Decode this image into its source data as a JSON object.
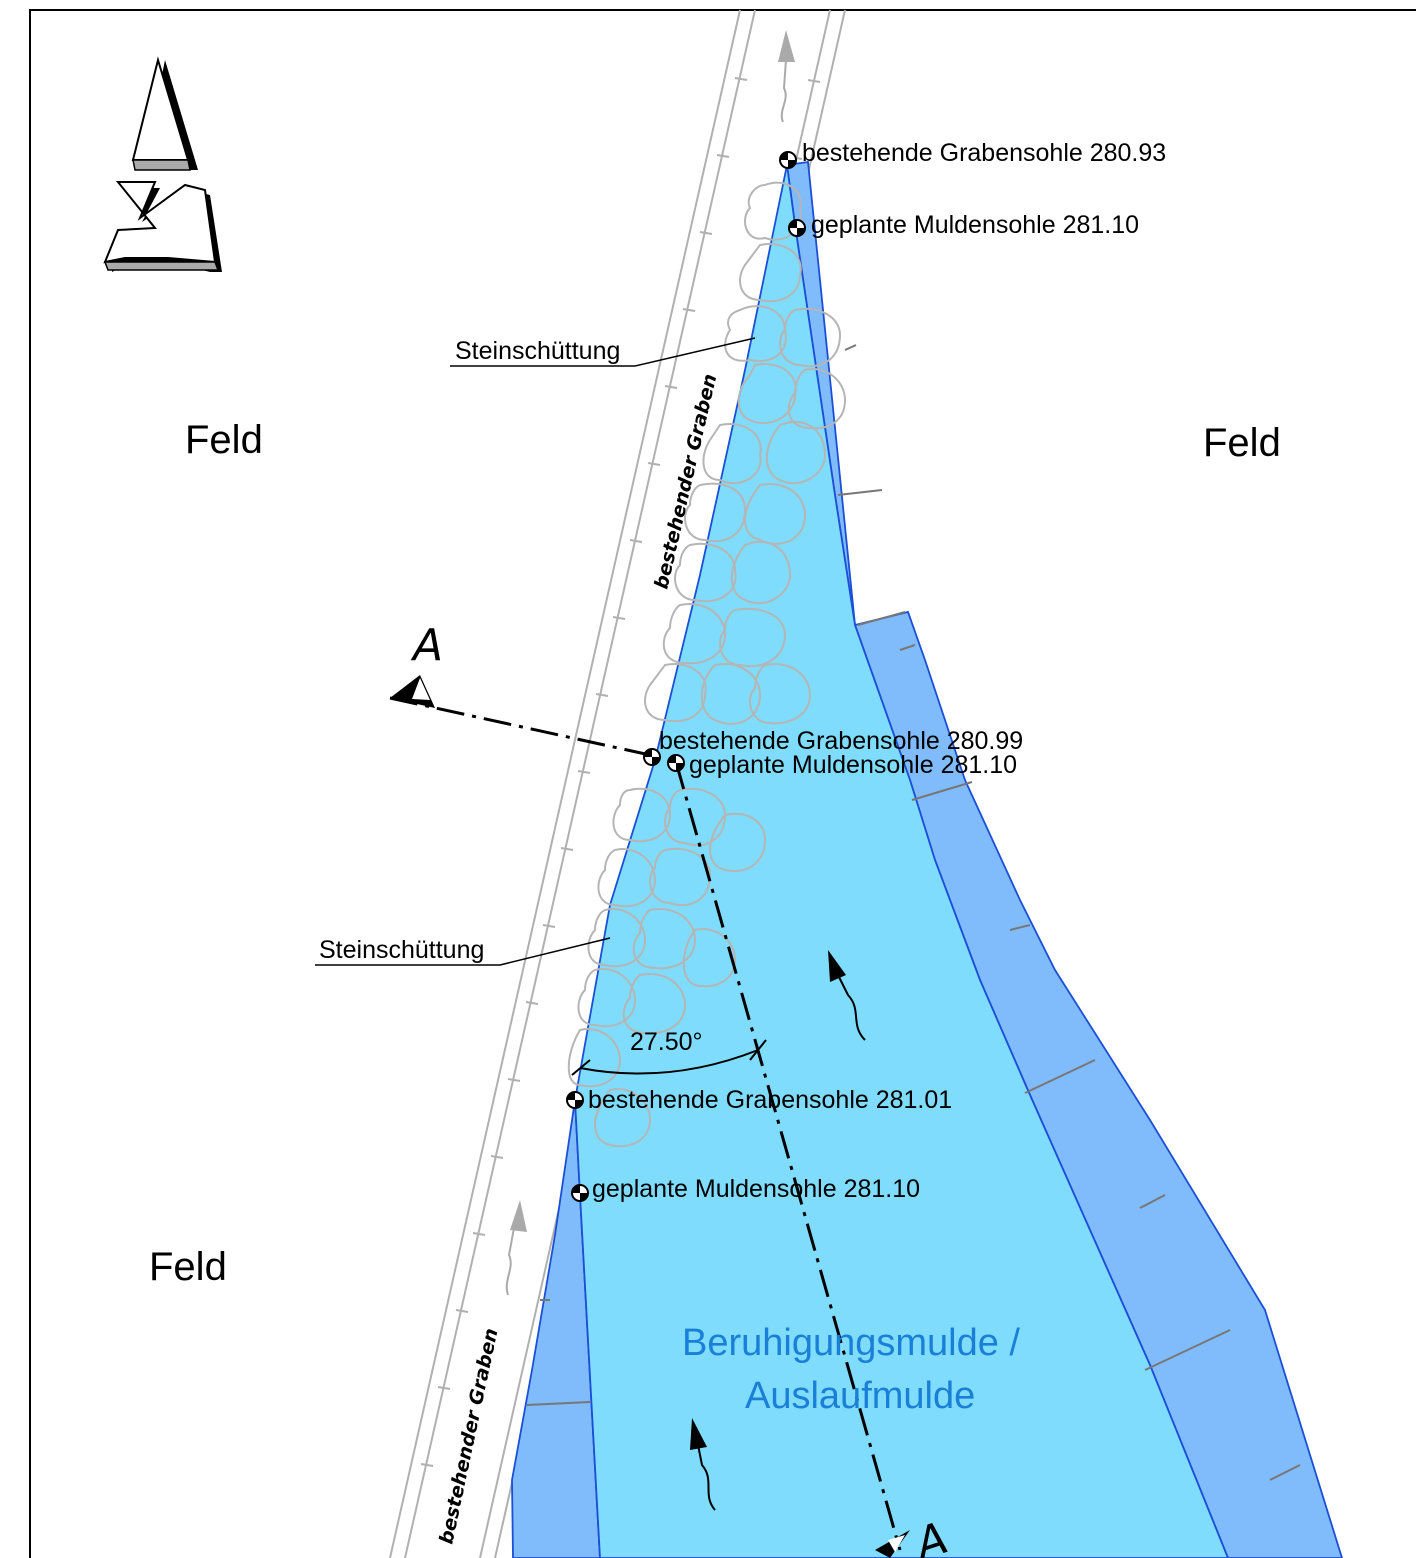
{
  "labels": {
    "feld": "Feld",
    "graben": "bestehender Graben",
    "steinschuettung": "Steinschüttung",
    "section": "A",
    "angle": "27.50°",
    "mulde_line1": "Beruhigungsmulde /",
    "mulde_line2": "Auslaufmulde"
  },
  "points": [
    {
      "text": "bestehende Grabensohle 280.93"
    },
    {
      "text": "geplante Muldensohle 281.10"
    },
    {
      "text": "bestehende Grabensohle 280.99"
    },
    {
      "text": "geplante Muldensohle 281.10"
    },
    {
      "text": "bestehende Grabensohle 281.01"
    },
    {
      "text": "geplante Muldensohle 281.10"
    }
  ],
  "colors": {
    "mulde_fill": "#7fdcfc",
    "slope_fill": "#80bbfc",
    "outline": "#1a4fd6",
    "mulde_text": "#1a7fd6"
  },
  "icons": {
    "north_arrow": "north-arrow-icon",
    "flow_arrow": "flow-arrow-icon",
    "survey_point": "survey-point-icon",
    "section_marker": "section-marker-icon"
  }
}
